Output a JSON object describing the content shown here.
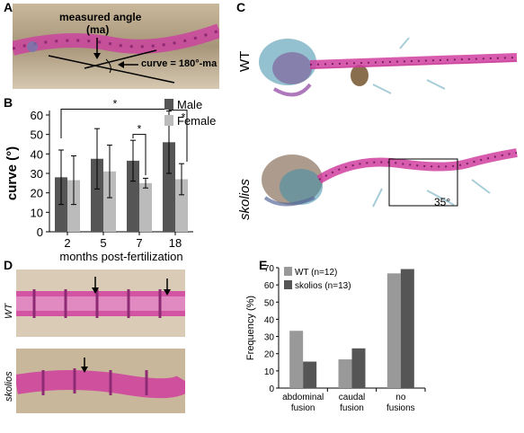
{
  "panels": {
    "a": {
      "letter": "A",
      "label_measured": "measured angle",
      "label_ma": "(ma)",
      "label_curve": "curve = 180°-ma"
    },
    "b": {
      "letter": "B"
    },
    "c": {
      "letter": "C",
      "label_wt": "WT",
      "label_skolios": "skolios",
      "angle_label": "35°"
    },
    "d": {
      "letter": "D",
      "label_wt": "WT",
      "label_skolios": "skolios"
    },
    "e": {
      "letter": "E"
    }
  },
  "colors": {
    "male": "#555555",
    "female": "#bbbbbb",
    "wt": "#999999",
    "skolios": "#555555",
    "bone": "#c8409e"
  },
  "chart_data": [
    {
      "type": "bar",
      "panel": "B",
      "categories": [
        "2",
        "5",
        "7",
        "18"
      ],
      "series": [
        {
          "name": "Male",
          "values": [
            28,
            37.5,
            36.5,
            46
          ],
          "errors": [
            14,
            15.5,
            10.5,
            16
          ]
        },
        {
          "name": "Female",
          "values": [
            26.5,
            31,
            25,
            27
          ],
          "errors": [
            12.5,
            13.5,
            2.5,
            8
          ]
        }
      ],
      "xlabel": "months post-fertilization",
      "ylabel": "curve (°)",
      "ylim": [
        0,
        60
      ],
      "yticks": [
        0,
        10,
        20,
        30,
        40,
        50,
        60
      ],
      "significance": [
        "*",
        "*",
        "*"
      ],
      "legend": "top-right"
    },
    {
      "type": "bar",
      "panel": "E",
      "categories": [
        "abdominal fusion",
        "caudal fusion",
        "no fusions"
      ],
      "category_lines": [
        [
          "abdominal",
          "fusion"
        ],
        [
          "caudal",
          "fusion"
        ],
        [
          "no",
          "fusions"
        ]
      ],
      "series": [
        {
          "name": "WT (n=12)",
          "values": [
            33.3,
            16.7,
            66.7
          ]
        },
        {
          "name": "skolios (n=13)",
          "values": [
            15.4,
            23.1,
            69.2
          ]
        }
      ],
      "ylabel": "Frequency (%)",
      "ylim": [
        0,
        70
      ],
      "yticks": [
        0,
        10,
        20,
        30,
        40,
        50,
        60,
        70
      ],
      "legend": "top-left"
    }
  ]
}
